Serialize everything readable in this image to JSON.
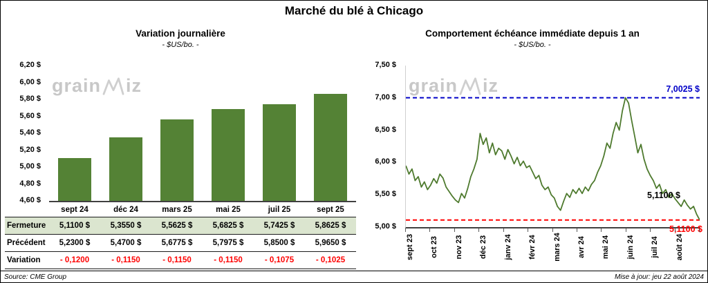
{
  "page": {
    "title": "Marché du blé à Chicago"
  },
  "watermark": {
    "pre": "grain",
    "suf": "iz"
  },
  "footer": {
    "source": "Source: CME Group",
    "updated": "Mise à jour: jeu 22 août 2024"
  },
  "left": {
    "rows": [
      {
        "label": "Fermeture",
        "values": [
          "5,1100  $",
          "5,3550  $",
          "5,5625  $",
          "5,6825  $",
          "5,7425  $",
          "5,8625  $"
        ]
      },
      {
        "label": "Précédent",
        "values": [
          "5,2300  $",
          "5,4700  $",
          "5,6775  $",
          "5,7975  $",
          "5,8500  $",
          "5,9650  $"
        ]
      },
      {
        "label": "Variation",
        "values": [
          "- 0,1200",
          "- 0,1150",
          "- 0,1150",
          "- 0,1150",
          "- 0,1075",
          "- 0,1025"
        ]
      }
    ]
  },
  "chart_data": [
    {
      "type": "bar",
      "title": "Variation  journalière",
      "subtitle": "- $US/bo. -",
      "categories": [
        "sept 24",
        "déc 24",
        "mars 25",
        "mai 25",
        "juil 25",
        "sept 25"
      ],
      "values": [
        5.11,
        5.355,
        5.5625,
        5.6825,
        5.7425,
        5.8625
      ],
      "ylim": [
        4.6,
        6.2
      ],
      "ytick_step": 0.2,
      "bar_color": "#548235",
      "xlabel": "",
      "ylabel": "$US/bo."
    },
    {
      "type": "line",
      "title": "Comportement  échéance  immédiate  depuis 1 an",
      "subtitle": "- $US/bo. -",
      "x_months": [
        "sept 23",
        "oct 23",
        "nov 23",
        "déc 23",
        "janv 24",
        "févr 24",
        "mars 24",
        "avr 24",
        "mai 24",
        "juin 24",
        "juil 24",
        "août 24"
      ],
      "values": [
        5.95,
        5.82,
        5.9,
        5.72,
        5.78,
        5.62,
        5.7,
        5.58,
        5.65,
        5.75,
        5.68,
        5.82,
        5.76,
        5.62,
        5.55,
        5.48,
        5.42,
        5.38,
        5.52,
        5.45,
        5.6,
        5.78,
        5.9,
        6.05,
        6.45,
        6.28,
        6.38,
        6.15,
        6.3,
        6.12,
        6.22,
        6.18,
        6.05,
        6.2,
        6.1,
        5.98,
        6.08,
        5.95,
        6.02,
        5.92,
        5.95,
        5.85,
        5.75,
        5.8,
        5.65,
        5.58,
        5.62,
        5.5,
        5.45,
        5.32,
        5.26,
        5.4,
        5.52,
        5.46,
        5.58,
        5.52,
        5.6,
        5.52,
        5.62,
        5.56,
        5.66,
        5.72,
        5.85,
        5.95,
        6.1,
        6.3,
        6.22,
        6.45,
        6.62,
        6.5,
        6.8,
        7.0025,
        6.92,
        6.65,
        6.4,
        6.15,
        6.28,
        6.05,
        5.9,
        5.8,
        5.72,
        5.6,
        5.66,
        5.52,
        5.58,
        5.46,
        5.52,
        5.44,
        5.38,
        5.32,
        5.42,
        5.34,
        5.28,
        5.32,
        5.2,
        5.11
      ],
      "ylim": [
        5.0,
        7.5
      ],
      "ytick_step": 0.5,
      "line_color": "#4e7a2e",
      "ref_lines": [
        {
          "value": 7.0025,
          "color": "#0000c8",
          "label": "7,0025  $"
        },
        {
          "value": 5.11,
          "color": "#ff0000",
          "label": "5,1100  $"
        }
      ],
      "last_label": "5,1100  $",
      "legend": "none",
      "grid": "off"
    }
  ]
}
